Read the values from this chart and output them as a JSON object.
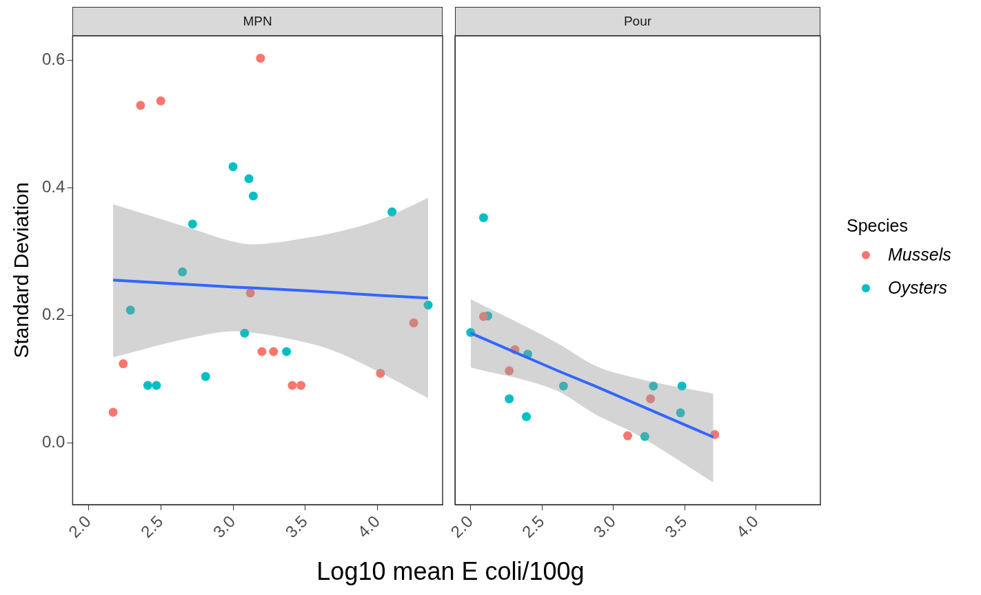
{
  "chart_data": [
    {
      "type": "scatter",
      "title": "MPN",
      "ylabel": "Standard Deviation",
      "legend_title": "Species",
      "legend": "right",
      "xlabel": "Log10 mean E coli/100g",
      "marker": "circle",
      "grid": false,
      "xlim": [
        1.89,
        4.45
      ],
      "ylim": [
        -0.097,
        0.638
      ],
      "xticks": [
        {
          "value": 2,
          "label": "2.0"
        },
        {
          "value": 2.5,
          "label": "2.5"
        },
        {
          "value": 3,
          "label": "3.0"
        },
        {
          "value": 3.5,
          "label": "3.5"
        },
        {
          "value": 4,
          "label": "4.0"
        }
      ],
      "yticks": [
        {
          "value": 0,
          "label": "0.0"
        },
        {
          "value": 0.2,
          "label": "0.2"
        },
        {
          "value": 0.4,
          "label": "0.4"
        },
        {
          "value": 0.6,
          "label": "0.6"
        }
      ],
      "series": [
        {
          "name": "Mussels",
          "color": "#f8766d",
          "x": [
            3.19,
            2.36,
            2.5,
            3.12,
            2.24,
            2.17,
            3.2,
            3.28,
            3.41,
            3.47,
            4.02,
            4.25
          ],
          "values": [
            0.603,
            0.529,
            0.536,
            0.235,
            0.124,
            0.048,
            0.143,
            0.143,
            0.09,
            0.09,
            0.109,
            0.188
          ]
        },
        {
          "name": "Oysters",
          "color": "#00bfc4",
          "x": [
            3.0,
            3.11,
            3.14,
            2.72,
            4.1,
            2.65,
            2.29,
            3.08,
            3.37,
            2.41,
            2.47,
            2.81,
            4.35
          ],
          "values": [
            0.433,
            0.414,
            0.387,
            0.343,
            0.362,
            0.268,
            0.208,
            0.172,
            0.143,
            0.09,
            0.09,
            0.104,
            0.216
          ]
        },
        {
          "type": "line",
          "marker": "none",
          "color": "#3366ff",
          "x": [
            2.17,
            2.71,
            3.01,
            3.13,
            3.53,
            3.69,
            4.02,
            4.35
          ],
          "values": [
            0.255,
            0.248,
            0.244,
            0.243,
            0.238,
            0.236,
            0.231,
            0.227
          ],
          "lower": [
            0.134,
            0.165,
            0.175,
            0.173,
            0.156,
            0.145,
            0.11,
            0.07
          ],
          "upper": [
            0.374,
            0.336,
            0.315,
            0.311,
            0.322,
            0.329,
            0.35,
            0.384
          ]
        }
      ]
    },
    {
      "type": "scatter",
      "title": "Pour",
      "tick_labels": "x",
      "marker": "circle",
      "grid": false,
      "xlim": [
        1.89,
        4.45
      ],
      "ylim": [
        -0.097,
        0.638
      ],
      "xticks": [
        {
          "value": 2,
          "label": "2.0"
        },
        {
          "value": 2.5,
          "label": "2.5"
        },
        {
          "value": 3,
          "label": "3.0"
        },
        {
          "value": 3.5,
          "label": "3.5"
        },
        {
          "value": 4,
          "label": "4.0"
        }
      ],
      "series": [
        {
          "color": "#f8766d",
          "x": [
            2.09,
            2.31,
            2.27,
            3.26,
            3.1,
            3.71
          ],
          "values": [
            0.198,
            0.146,
            0.113,
            0.069,
            0.011,
            0.013
          ]
        },
        {
          "color": "#00bfc4",
          "x": [
            2.09,
            2.12,
            2.0,
            2.4,
            2.65,
            2.27,
            2.39,
            3.28,
            3.48,
            3.47,
            3.22
          ],
          "values": [
            0.353,
            0.199,
            0.173,
            0.139,
            0.089,
            0.069,
            0.041,
            0.089,
            0.089,
            0.047,
            0.01
          ]
        },
        {
          "type": "line",
          "marker": "none",
          "color": "#3366ff",
          "x": [
            2.0,
            2.61,
            2.87,
            3.13,
            3.7
          ],
          "values": [
            0.172,
            0.113,
            0.089,
            0.064,
            0.009
          ],
          "lower": [
            0.118,
            0.081,
            0.045,
            0.017,
            -0.062
          ],
          "upper": [
            0.225,
            0.156,
            0.121,
            0.103,
            0.077
          ]
        }
      ]
    }
  ]
}
